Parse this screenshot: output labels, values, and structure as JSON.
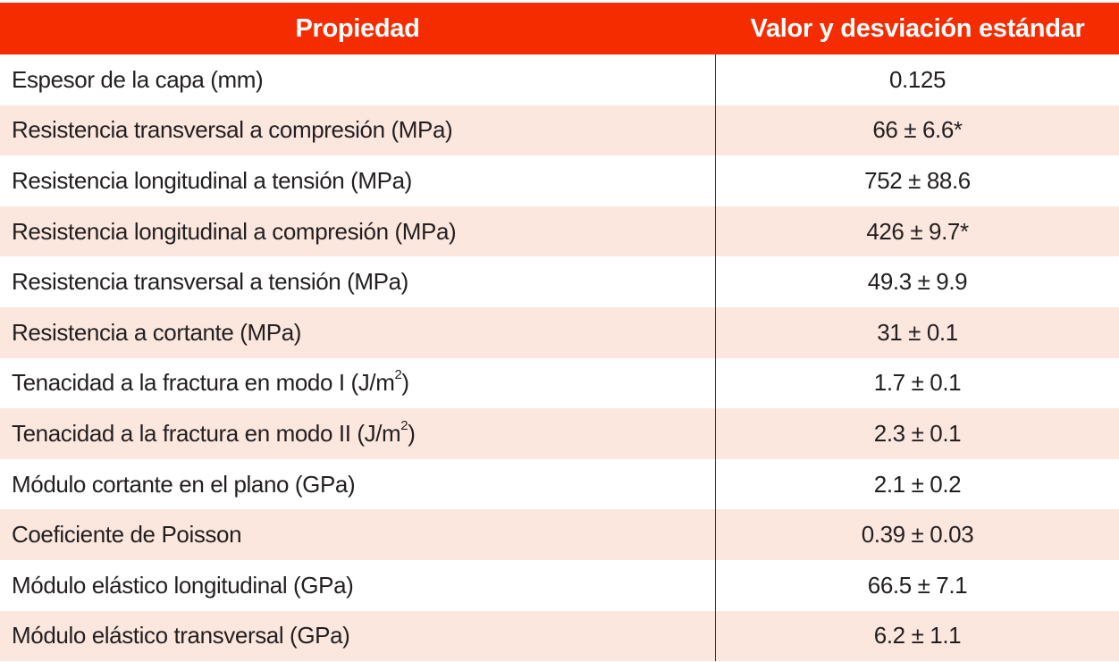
{
  "header": {
    "property": "Propiedad",
    "value": "Valor y desviación estándar"
  },
  "colors": {
    "header_bg": "#f52c00",
    "alt_row_bg": "#fce7df"
  },
  "rows": [
    {
      "label": "Espesor de la capa (mm)",
      "sup": "",
      "suffix": "",
      "value": "0.125"
    },
    {
      "label": "Resistencia transversal a compresión (MPa)",
      "sup": "",
      "suffix": "",
      "value": "66 ± 6.6*"
    },
    {
      "label": "Resistencia longitudinal a tensión (MPa)",
      "sup": "",
      "suffix": "",
      "value": "752 ± 88.6"
    },
    {
      "label": "Resistencia longitudinal a compresión (MPa)",
      "sup": "",
      "suffix": "",
      "value": "426 ± 9.7*"
    },
    {
      "label": "Resistencia transversal a tensión (MPa)",
      "sup": "",
      "suffix": "",
      "value": "49.3 ± 9.9"
    },
    {
      "label": "Resistencia a cortante (MPa)",
      "sup": "",
      "suffix": "",
      "value": "31 ± 0.1"
    },
    {
      "label": "Tenacidad a la fractura en modo I (J/m",
      "sup": "2",
      "suffix": ")",
      "value": "1.7 ± 0.1"
    },
    {
      "label": "Tenacidad a la fractura en modo II (J/m",
      "sup": "2",
      "suffix": ")",
      "value": "2.3 ± 0.1"
    },
    {
      "label": "Módulo cortante en el plano (GPa)",
      "sup": "",
      "suffix": "",
      "value": "2.1 ± 0.2"
    },
    {
      "label": "Coeficiente de Poisson",
      "sup": "",
      "suffix": "",
      "value": "0.39 ± 0.03"
    },
    {
      "label": "Módulo elástico longitudinal (GPa)",
      "sup": "",
      "suffix": "",
      "value": "66.5 ± 7.1"
    },
    {
      "label": "Módulo elástico transversal (GPa)",
      "sup": "",
      "suffix": "",
      "value": "6.2 ± 1.1"
    }
  ]
}
